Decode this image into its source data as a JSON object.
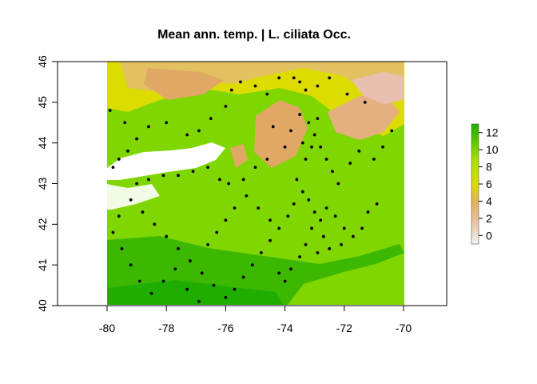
{
  "map": {
    "title": "Mean ann. temp. | L. ciliata Occ.",
    "x_ticks": [
      "-80",
      "-78",
      "-76",
      "-74",
      "-72",
      "-70"
    ],
    "y_ticks": [
      "40",
      "41",
      "42",
      "43",
      "44",
      "45",
      "46"
    ],
    "legend_ticks": [
      "0",
      "2",
      "4",
      "6",
      "8",
      "10",
      "12"
    ],
    "x_range": [
      -81.5,
      -68.5
    ],
    "y_range": [
      40,
      46
    ],
    "raster_extent": {
      "lon": [
        -80,
        -70
      ],
      "lat": [
        40,
        46
      ]
    },
    "legend_range": [
      -1,
      13
    ],
    "colors": {
      "cold": "#f2f2f2",
      "cool": "#e6b37f",
      "mid": "#dcdc00",
      "warm": "#7fd600",
      "hot": "#1fae00",
      "point": "#000000"
    }
  },
  "chart_data": {
    "type": "scatter",
    "title": "Mean ann. temp. | L. ciliata Occ.",
    "xlabel": "",
    "ylabel": "",
    "xlim": [
      -81.5,
      -68.5
    ],
    "ylim": [
      40,
      46
    ],
    "legend": "right",
    "colorbar": {
      "min": -1,
      "max": 13,
      "ticks": [
        0,
        2,
        4,
        6,
        8,
        10,
        12
      ]
    },
    "points": [
      [
        -79.8,
        43.4
      ],
      [
        -79.6,
        43.6
      ],
      [
        -79.3,
        43.8
      ],
      [
        -79.0,
        44.1
      ],
      [
        -78.6,
        44.4
      ],
      [
        -78.0,
        44.5
      ],
      [
        -77.3,
        44.2
      ],
      [
        -76.9,
        44.3
      ],
      [
        -76.5,
        44.6
      ],
      [
        -76.0,
        44.9
      ],
      [
        -75.8,
        45.3
      ],
      [
        -75.5,
        45.5
      ],
      [
        -75.0,
        45.4
      ],
      [
        -74.6,
        45.2
      ],
      [
        -74.2,
        45.6
      ],
      [
        -73.7,
        45.6
      ],
      [
        -73.5,
        45.5
      ],
      [
        -73.3,
        45.3
      ],
      [
        -72.9,
        45.4
      ],
      [
        -72.5,
        45.6
      ],
      [
        -71.9,
        45.2
      ],
      [
        -71.3,
        45.0
      ],
      [
        -79.9,
        44.8
      ],
      [
        -79.4,
        44.5
      ],
      [
        -79.0,
        43.0
      ],
      [
        -78.6,
        43.1
      ],
      [
        -78.1,
        43.2
      ],
      [
        -77.6,
        43.2
      ],
      [
        -77.1,
        43.3
      ],
      [
        -76.6,
        43.4
      ],
      [
        -76.2,
        43.1
      ],
      [
        -75.9,
        43.0
      ],
      [
        -75.4,
        43.1
      ],
      [
        -75.0,
        43.4
      ],
      [
        -74.6,
        43.6
      ],
      [
        -74.0,
        43.9
      ],
      [
        -73.8,
        44.3
      ],
      [
        -73.5,
        44.7
      ],
      [
        -73.2,
        44.5
      ],
      [
        -73.0,
        44.2
      ],
      [
        -72.8,
        43.9
      ],
      [
        -72.6,
        43.6
      ],
      [
        -72.4,
        43.3
      ],
      [
        -72.2,
        43.0
      ],
      [
        -71.8,
        43.5
      ],
      [
        -71.5,
        43.8
      ],
      [
        -71.0,
        43.6
      ],
      [
        -70.7,
        43.9
      ],
      [
        -70.4,
        44.3
      ],
      [
        -73.6,
        43.1
      ],
      [
        -73.4,
        42.8
      ],
      [
        -73.2,
        42.6
      ],
      [
        -73.0,
        42.3
      ],
      [
        -72.8,
        42.1
      ],
      [
        -72.6,
        42.4
      ],
      [
        -72.3,
        42.2
      ],
      [
        -72.0,
        41.9
      ],
      [
        -71.7,
        41.7
      ],
      [
        -71.4,
        41.9
      ],
      [
        -71.2,
        42.3
      ],
      [
        -70.9,
        42.5
      ],
      [
        -73.7,
        42.5
      ],
      [
        -73.9,
        42.2
      ],
      [
        -74.2,
        41.9
      ],
      [
        -74.5,
        41.6
      ],
      [
        -74.8,
        41.3
      ],
      [
        -75.1,
        41.0
      ],
      [
        -75.4,
        40.7
      ],
      [
        -75.7,
        40.4
      ],
      [
        -76.0,
        40.2
      ],
      [
        -76.4,
        40.5
      ],
      [
        -76.8,
        40.8
      ],
      [
        -77.2,
        41.1
      ],
      [
        -77.6,
        41.4
      ],
      [
        -78.0,
        41.7
      ],
      [
        -78.4,
        42.0
      ],
      [
        -78.8,
        42.3
      ],
      [
        -79.2,
        42.6
      ],
      [
        -79.6,
        42.2
      ],
      [
        -79.8,
        41.8
      ],
      [
        -79.5,
        41.4
      ],
      [
        -79.2,
        41.0
      ],
      [
        -78.9,
        40.6
      ],
      [
        -78.5,
        40.3
      ],
      [
        -78.1,
        40.6
      ],
      [
        -77.7,
        40.9
      ],
      [
        -77.3,
        40.4
      ],
      [
        -76.9,
        40.1
      ],
      [
        -76.6,
        41.5
      ],
      [
        -76.3,
        41.8
      ],
      [
        -76.0,
        42.1
      ],
      [
        -75.7,
        42.4
      ],
      [
        -75.3,
        42.7
      ],
      [
        -74.9,
        42.4
      ],
      [
        -74.5,
        42.1
      ],
      [
        -74.2,
        40.8
      ],
      [
        -74.0,
        40.6
      ],
      [
        -73.8,
        40.9
      ],
      [
        -73.5,
        41.2
      ],
      [
        -73.3,
        41.5
      ],
      [
        -72.9,
        41.3
      ],
      [
        -72.5,
        41.4
      ],
      [
        -72.1,
        41.5
      ],
      [
        -73.1,
        41.9
      ],
      [
        -72.7,
        41.7
      ],
      [
        -73.3,
        43.6
      ],
      [
        -73.1,
        43.9
      ],
      [
        -72.9,
        44.6
      ],
      [
        -73.4,
        44.0
      ],
      [
        -74.4,
        44.4
      ]
    ]
  }
}
